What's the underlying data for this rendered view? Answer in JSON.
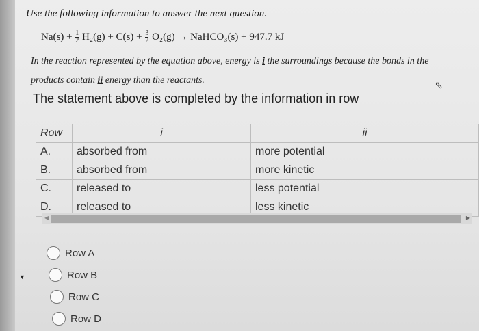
{
  "intro": "Use the following information to answer the next question.",
  "equation": {
    "t1": "Na(s) + ",
    "f1n": "1",
    "f1d": "2",
    "t2": "H₂(g) + C(s) + ",
    "f2n": "3",
    "f2d": "2",
    "t3": "O₂(g) → NaHCO₃(s) + 947.7 kJ"
  },
  "statement": {
    "p1": "In the reaction represented by the equation above, energy is ",
    "b1": "i",
    "p2": " the surroundings because the bonds in the products contain ",
    "b2": "ii",
    "p3": " energy than the reactants."
  },
  "prompt": "The statement above is completed by the information in row",
  "table": {
    "headers": [
      "Row",
      "i",
      "ii"
    ],
    "rows": [
      [
        "A.",
        "absorbed from",
        "more potential"
      ],
      [
        "B.",
        "absorbed from",
        "more kinetic"
      ],
      [
        "C.",
        "released to",
        "less potential"
      ],
      [
        "D.",
        "released to",
        "less kinetic"
      ]
    ]
  },
  "options": [
    "Row A",
    "Row B",
    "Row C",
    "Row D"
  ]
}
